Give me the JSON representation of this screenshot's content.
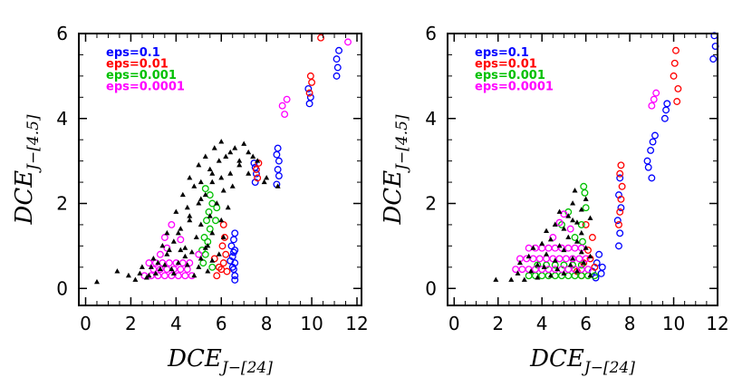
{
  "chart_data": [
    {
      "type": "scatter",
      "title": "",
      "xlabel": "DCE",
      "xlabel_sub": "J−[24]",
      "ylabel": "DCE",
      "ylabel_sub": "J−[4.5]",
      "xlim": [
        -0.3,
        12.2
      ],
      "ylim": [
        -0.4,
        6.0
      ],
      "xticks": [
        "0",
        "2",
        "4",
        "6",
        "8",
        "10",
        "12"
      ],
      "yticks": [
        "0",
        "2",
        "4",
        "6"
      ],
      "legend_placement": "top-left",
      "series": [
        {
          "name": "eps=0.1",
          "color": "#0000ff",
          "marker": "open-circle",
          "x": [
            6.6,
            6.55,
            6.6,
            6.5,
            6.6,
            6.45,
            6.55,
            6.6,
            6.5,
            6.6,
            6.4,
            6.55,
            7.5,
            7.55,
            7.5,
            7.45,
            8.5,
            8.55,
            8.45,
            8.5,
            8.55,
            8.45,
            9.9,
            9.95,
            9.85,
            11.1,
            11.15,
            11.1,
            11.2
          ],
          "y": [
            0.3,
            0.45,
            0.6,
            0.75,
            0.9,
            1.0,
            1.15,
            1.3,
            0.5,
            0.2,
            0.65,
            0.85,
            2.5,
            2.7,
            2.85,
            2.95,
            2.8,
            3.0,
            3.15,
            3.3,
            2.65,
            2.45,
            4.35,
            4.5,
            4.7,
            5.0,
            5.2,
            5.4,
            5.6
          ]
        },
        {
          "name": "eps=0.01",
          "color": "#ff0000",
          "marker": "open-circle",
          "x": [
            5.8,
            6.0,
            6.1,
            6.2,
            5.9,
            6.05,
            6.15,
            5.7,
            6.25,
            6.1,
            7.6,
            7.55,
            7.65,
            9.9,
            10.0,
            9.95,
            10.4
          ],
          "y": [
            0.3,
            0.45,
            0.6,
            0.8,
            0.5,
            1.0,
            1.2,
            0.7,
            0.4,
            1.5,
            2.6,
            2.8,
            2.95,
            4.6,
            4.85,
            5.0,
            5.9
          ]
        },
        {
          "name": "eps=0.001",
          "color": "#00c000",
          "marker": "open-circle",
          "x": [
            5.2,
            5.3,
            5.4,
            5.5,
            5.35,
            5.45,
            5.6,
            5.5,
            5.3,
            5.75,
            5.8,
            5.25,
            5.15,
            5.6
          ],
          "y": [
            0.6,
            0.8,
            1.1,
            1.4,
            1.6,
            1.8,
            2.0,
            2.2,
            2.35,
            1.6,
            1.9,
            1.2,
            0.9,
            0.5
          ]
        },
        {
          "name": "eps=0.0001",
          "color": "#ff00ff",
          "marker": "open-circle",
          "x": [
            2.6,
            2.9,
            3.2,
            3.5,
            3.8,
            4.1,
            4.4,
            4.7,
            3.0,
            3.3,
            3.6,
            3.9,
            4.2,
            4.5,
            2.8,
            3.1,
            3.4,
            3.7,
            4.0,
            4.3,
            4.6,
            3.3,
            3.6,
            3.5,
            3.8,
            5.0,
            4.2,
            8.7,
            8.9,
            8.8,
            11.6
          ],
          "y": [
            0.3,
            0.3,
            0.3,
            0.3,
            0.3,
            0.3,
            0.3,
            0.3,
            0.45,
            0.45,
            0.45,
            0.45,
            0.45,
            0.45,
            0.6,
            0.6,
            0.6,
            0.6,
            0.6,
            0.6,
            0.6,
            0.8,
            0.95,
            1.2,
            1.5,
            0.8,
            1.15,
            4.3,
            4.45,
            4.1,
            5.8
          ]
        },
        {
          "name": "",
          "color": "#000000",
          "marker": "filled-triangle",
          "x": [
            0.5,
            1.4,
            1.9,
            2.2,
            2.5,
            2.8,
            3.0,
            3.3,
            3.6,
            3.9,
            4.2,
            4.5,
            4.8,
            5.1,
            5.4,
            2.7,
            3.1,
            3.5,
            3.8,
            4.1,
            4.4,
            4.7,
            5.0,
            5.3,
            5.6,
            3.4,
            3.9,
            4.4,
            4.9,
            5.4,
            5.9,
            3.6,
            4.2,
            4.6,
            5.1,
            5.6,
            6.1,
            4.0,
            4.5,
            5.0,
            5.5,
            6.0,
            4.3,
            4.8,
            5.3,
            5.8,
            6.3,
            4.6,
            5.1,
            5.6,
            6.1,
            5.0,
            5.5,
            6.0,
            6.5,
            5.3,
            5.9,
            6.4,
            5.7,
            6.2,
            6.8,
            6.0,
            6.6,
            7.2,
            6.4,
            7.0,
            7.6,
            6.8,
            7.4,
            8.0,
            7.2,
            7.9,
            8.5,
            3.2,
            3.7,
            4.1,
            4.6,
            5.1,
            5.6,
            2.9,
            2.4
          ],
          "y": [
            0.15,
            0.4,
            0.3,
            0.2,
            0.5,
            0.3,
            0.7,
            0.45,
            0.8,
            0.35,
            0.9,
            0.55,
            0.3,
            0.7,
            0.4,
            0.25,
            0.35,
            0.55,
            0.45,
            0.6,
            0.75,
            0.85,
            0.5,
            0.95,
            0.65,
            1.0,
            1.1,
            0.95,
            1.2,
            1.0,
            0.8,
            1.3,
            1.4,
            1.6,
            1.5,
            1.3,
            1.2,
            1.8,
            1.9,
            2.0,
            1.7,
            1.6,
            2.2,
            2.4,
            2.2,
            2.0,
            1.9,
            2.6,
            2.5,
            2.7,
            2.3,
            2.9,
            2.8,
            2.6,
            2.4,
            3.1,
            3.0,
            2.7,
            3.3,
            3.1,
            3.0,
            3.45,
            3.3,
            3.2,
            3.2,
            3.4,
            3.0,
            2.9,
            3.1,
            2.6,
            2.7,
            2.5,
            2.4,
            0.6,
            0.9,
            1.3,
            1.7,
            2.1,
            2.5,
            0.5,
            0.35
          ]
        }
      ]
    },
    {
      "type": "scatter",
      "title": "",
      "xlabel": "DCE",
      "xlabel_sub": "J−[24]",
      "ylabel": "DCE",
      "ylabel_sub": "J−[4.5]",
      "xlim": [
        -0.3,
        12.0
      ],
      "ylim": [
        -0.4,
        6.0
      ],
      "xticks": [
        "0",
        "2",
        "4",
        "6",
        "8",
        "10",
        "12"
      ],
      "yticks": [
        "0",
        "2",
        "4",
        "6"
      ],
      "legend_placement": "top-left",
      "series": [
        {
          "name": "eps=0.1",
          "color": "#0000ff",
          "marker": "open-circle",
          "x": [
            6.3,
            6.5,
            6.6,
            6.7,
            6.45,
            6.75,
            7.5,
            7.55,
            7.45,
            7.6,
            7.5,
            7.55,
            8.8,
            8.95,
            9.05,
            9.15,
            8.85,
            9.0,
            9.6,
            9.65,
            9.7,
            11.8,
            11.9,
            11.85
          ],
          "y": [
            0.4,
            0.6,
            0.8,
            0.35,
            0.25,
            0.5,
            1.0,
            1.3,
            1.6,
            1.9,
            2.2,
            2.6,
            3.0,
            3.25,
            3.45,
            3.6,
            2.85,
            2.6,
            4.0,
            4.2,
            4.35,
            5.4,
            5.7,
            5.95
          ]
        },
        {
          "name": "eps=0.01",
          "color": "#ff0000",
          "marker": "open-circle",
          "x": [
            5.6,
            5.9,
            6.1,
            6.3,
            6.0,
            5.8,
            6.2,
            6.4,
            7.5,
            7.55,
            7.6,
            7.65,
            7.55,
            7.6,
            10.0,
            10.05,
            10.1,
            10.15,
            10.2
          ],
          "y": [
            0.4,
            0.6,
            0.9,
            1.2,
            1.5,
            0.3,
            0.7,
            0.5,
            1.5,
            1.8,
            2.1,
            2.4,
            2.7,
            2.9,
            5.0,
            5.3,
            5.6,
            4.4,
            4.7
          ]
        },
        {
          "name": "eps=0.001",
          "color": "#00c000",
          "marker": "open-circle",
          "x": [
            3.4,
            3.7,
            4.0,
            4.3,
            4.6,
            4.9,
            5.2,
            5.5,
            5.8,
            6.1,
            6.4,
            3.8,
            4.2,
            4.6,
            5.0,
            5.4,
            5.8,
            6.0,
            5.8,
            5.85,
            5.9,
            5.95,
            4.9,
            5.2,
            5.5
          ],
          "y": [
            0.3,
            0.3,
            0.3,
            0.3,
            0.3,
            0.3,
            0.3,
            0.3,
            0.3,
            0.3,
            0.3,
            0.55,
            0.55,
            0.55,
            0.55,
            0.55,
            0.55,
            1.9,
            1.5,
            1.1,
            2.4,
            2.25,
            1.5,
            1.8,
            1.2
          ]
        },
        {
          "name": "eps=0.0001",
          "color": "#ff00ff",
          "marker": "open-circle",
          "x": [
            2.8,
            3.1,
            3.4,
            3.7,
            4.0,
            4.3,
            4.6,
            4.9,
            5.2,
            5.5,
            5.8,
            6.1,
            3.0,
            3.3,
            3.6,
            3.9,
            4.2,
            4.5,
            4.8,
            5.1,
            5.4,
            5.7,
            6.0,
            3.4,
            3.7,
            4.0,
            4.3,
            4.6,
            4.9,
            5.2,
            5.5,
            5.8,
            4.5,
            4.8,
            5.0,
            5.3,
            9.0,
            9.1,
            9.2
          ],
          "y": [
            0.45,
            0.45,
            0.45,
            0.45,
            0.45,
            0.45,
            0.45,
            0.45,
            0.45,
            0.45,
            0.45,
            0.45,
            0.7,
            0.7,
            0.7,
            0.7,
            0.7,
            0.7,
            0.7,
            0.7,
            0.7,
            0.7,
            0.7,
            0.95,
            0.95,
            0.95,
            0.95,
            0.95,
            0.95,
            0.95,
            0.95,
            0.95,
            1.2,
            1.55,
            1.75,
            1.4,
            4.3,
            4.45,
            4.6
          ]
        },
        {
          "name": "",
          "color": "#000000",
          "marker": "filled-triangle",
          "x": [
            1.9,
            2.6,
            2.9,
            3.2,
            3.5,
            3.8,
            4.1,
            4.4,
            4.7,
            5.0,
            5.3,
            5.6,
            5.9,
            6.2,
            3.0,
            3.4,
            3.8,
            4.2,
            4.6,
            5.0,
            5.4,
            5.8,
            6.2,
            3.6,
            4.0,
            4.4,
            4.8,
            5.2,
            5.6,
            6.0,
            4.2,
            4.6,
            5.0,
            5.4,
            5.8,
            4.8,
            5.2,
            5.6,
            5.4,
            5.8,
            6.2,
            5.5,
            6.0
          ],
          "y": [
            0.2,
            0.2,
            0.35,
            0.2,
            0.4,
            0.25,
            0.5,
            0.3,
            0.45,
            0.35,
            0.55,
            0.4,
            0.6,
            0.3,
            0.6,
            0.75,
            0.55,
            0.8,
            0.65,
            0.9,
            0.7,
            0.85,
            0.75,
            0.95,
            1.05,
            1.15,
            1.0,
            1.2,
            1.1,
            0.95,
            1.35,
            1.5,
            1.4,
            1.6,
            1.3,
            1.8,
            1.7,
            1.55,
            2.0,
            1.85,
            1.65,
            2.3,
            2.1
          ]
        }
      ]
    }
  ]
}
